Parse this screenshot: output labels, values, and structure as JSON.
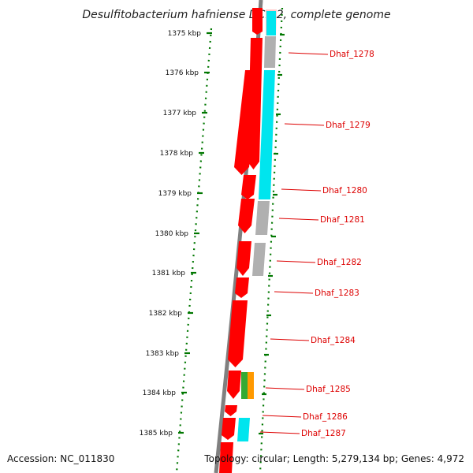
{
  "title": "Desulfitobacterium hafniense DCB-2, complete genome",
  "ruler": {
    "ticks": [
      "1375 kbp",
      "1376 kbp",
      "1377 kbp",
      "1378 kbp",
      "1379 kbp",
      "1380 kbp",
      "1381 kbp",
      "1382 kbp",
      "1383 kbp",
      "1384 kbp",
      "1385 kbp"
    ]
  },
  "genes": [
    {
      "name": "Dhaf_1278"
    },
    {
      "name": "Dhaf_1279"
    },
    {
      "name": "Dhaf_1280"
    },
    {
      "name": "Dhaf_1281"
    },
    {
      "name": "Dhaf_1282"
    },
    {
      "name": "Dhaf_1283"
    },
    {
      "name": "Dhaf_1284"
    },
    {
      "name": "Dhaf_1285"
    },
    {
      "name": "Dhaf_1286"
    },
    {
      "name": "Dhaf_1287"
    }
  ],
  "colors": {
    "gene_arrow": "#ff0000",
    "backbone": "#808080",
    "ruler": "#007700",
    "label": "#dd0000",
    "category_cyan": "#00e5ee",
    "category_gray": "#b0b0b0",
    "category_green": "#33aa33",
    "category_orange": "#ff9900",
    "category_pink": "#ffc8c8"
  },
  "footer": {
    "accession": "Accession: NC_011830",
    "summary": "Topology: circular; Length: 5,279,134 bp; Genes: 4,972"
  }
}
